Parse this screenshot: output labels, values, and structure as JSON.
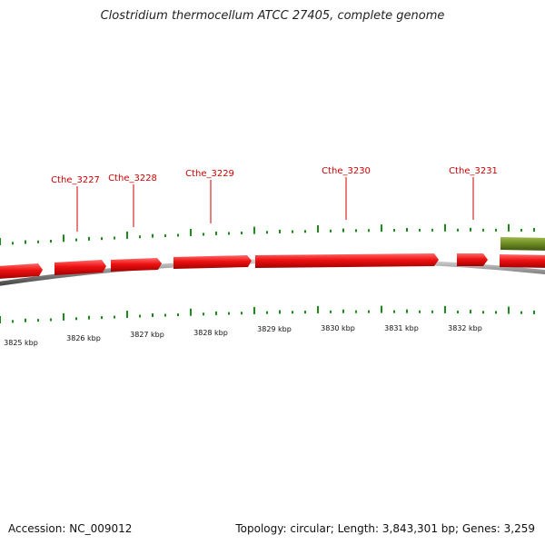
{
  "title": "Clostridium thermocellum ATCC 27405, complete genome",
  "footer": {
    "accession": "Accession: NC_009012",
    "stats": "Topology: circular; Length: 3,843,301 bp; Genes: 3,259"
  },
  "colors": {
    "gene_red": "#ee1111",
    "gene_olive": "#6b8a22",
    "tick_green": "#1a8a1a",
    "backbone_gray": "#8a8a8a",
    "label_red": "#cc0000"
  },
  "gene_labels": [
    "Cthe_3227",
    "Cthe_3228",
    "Cthe_3229",
    "Cthe_3230",
    "Cthe_3231"
  ],
  "kbp_labels": [
    "3825 kbp",
    "3826 kbp",
    "3827 kbp",
    "3828 kbp",
    "3829 kbp",
    "3830 kbp",
    "3831 kbp",
    "3832 kbp"
  ]
}
